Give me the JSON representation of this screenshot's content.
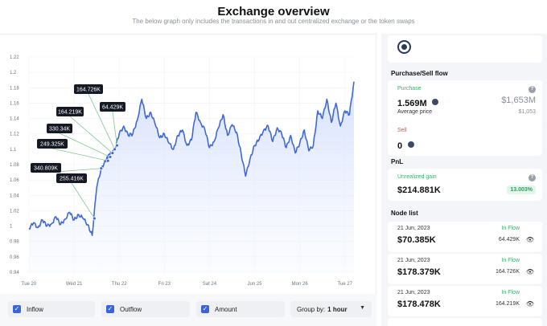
{
  "header": {
    "title": "Exchange overview",
    "subtitle": "The below graph only includes the transactions in and out centralized exchange or the token swaps"
  },
  "chart_data": {
    "type": "area",
    "yticks": [
      "1.22",
      "1.2",
      "1.18",
      "1.16",
      "1.14",
      "1.12",
      "1.1",
      "1.08",
      "1.06",
      "1.04",
      "1.02",
      "1",
      "0.98",
      "0.96",
      "0.94"
    ],
    "ylim": [
      0.94,
      1.22
    ],
    "xticks": [
      "Tue 20",
      "Wed 21",
      "Thu 22",
      "Fri 23",
      "Sat 24",
      "Jun 25",
      "Mon 26",
      "Tue 27"
    ],
    "xlim": [
      0,
      7.2
    ],
    "series": [
      {
        "x": [
          0,
          0.1,
          0.2,
          0.3,
          0.4,
          0.5,
          0.6,
          0.7,
          0.8,
          0.9,
          1.0,
          1.1,
          1.2,
          1.3,
          1.4,
          1.5,
          1.6,
          1.7,
          1.75,
          1.8,
          1.9,
          2.0,
          2.1,
          2.2,
          2.3,
          2.4,
          2.5,
          2.6,
          2.7,
          2.8,
          2.9,
          3.0,
          3.1,
          3.2,
          3.3,
          3.4,
          3.5,
          3.6,
          3.7,
          3.8,
          3.9,
          4.0,
          4.1,
          4.2,
          4.3,
          4.4,
          4.5,
          4.6,
          4.7,
          4.8,
          4.9,
          5.0,
          5.1,
          5.2,
          5.3,
          5.4,
          5.5,
          5.6,
          5.7,
          5.8,
          5.9,
          6.0,
          6.1,
          6.2,
          6.3,
          6.4,
          6.5,
          6.6,
          6.7,
          6.8,
          6.9,
          7.0,
          7.1,
          7.2
        ],
        "y": [
          0.997,
          1.004,
          0.998,
          1.008,
          1.0,
          1.003,
          1.012,
          1.002,
          1.009,
          1.018,
          1.008,
          1.015,
          1.01,
          1.002,
          0.988,
          1.05,
          1.075,
          1.085,
          1.09,
          1.095,
          1.1,
          1.12,
          1.13,
          1.118,
          1.12,
          1.138,
          1.165,
          1.14,
          1.148,
          1.132,
          1.115,
          1.12,
          1.108,
          1.1,
          1.118,
          1.125,
          1.105,
          1.112,
          1.148,
          1.135,
          1.125,
          1.102,
          1.11,
          1.128,
          1.145,
          1.118,
          1.132,
          1.122,
          1.095,
          1.065,
          1.088,
          1.105,
          1.113,
          1.125,
          1.13,
          1.11,
          1.128,
          1.12,
          1.102,
          1.118,
          1.095,
          1.108,
          1.125,
          1.098,
          1.105,
          1.15,
          1.14,
          1.165,
          1.135,
          1.16,
          1.13,
          1.15,
          1.145,
          1.188
        ]
      }
    ],
    "annotations": [
      {
        "label": "164.726K",
        "x": 1.9,
        "y": 1.1
      },
      {
        "label": "164.219K",
        "x": 1.85,
        "y": 1.095
      },
      {
        "label": "64.429K",
        "x": 1.95,
        "y": 1.105
      },
      {
        "label": "330.34K",
        "x": 1.8,
        "y": 1.09
      },
      {
        "label": "249.325K",
        "x": 1.75,
        "y": 1.085
      },
      {
        "label": "340.809K",
        "x": 1.6,
        "y": 1.075
      },
      {
        "label": "255.416K",
        "x": 1.45,
        "y": 1.01
      }
    ]
  },
  "controls": {
    "inflow": "Inflow",
    "outflow": "Outflow",
    "amount": "Amount",
    "check": "✓",
    "group_label": "Group by:",
    "group_value": "1 hour",
    "caret": "▼"
  },
  "side": {
    "purchase_sell_title": "Purchase/Sell flow",
    "purchase_label": "Purchase",
    "purchase_value": "1.569M",
    "purchase_usd": "$1,653M",
    "avg_price_label": "Average price",
    "avg_price_value": "$1,053",
    "sell_label": "Sell",
    "sell_value": "0",
    "pnl_title": "PnL",
    "unrealized_label": "Unrealized gain",
    "unrealized_value": "$214.881K",
    "unrealized_pct": "13.003%",
    "node_title": "Node list",
    "help": "?",
    "nodes": [
      {
        "date": "21 Jun, 2023",
        "flow": "In Flow",
        "value": "$70.385K",
        "amount": "64.429K"
      },
      {
        "date": "21 Jun, 2023",
        "flow": "In Flow",
        "value": "$178.379K",
        "amount": "164.726K"
      },
      {
        "date": "21 Jun, 2023",
        "flow": "In Flow",
        "value": "$178.478K",
        "amount": "164.219K"
      }
    ]
  },
  "icons": {
    "logo": "protocol-logo-icon",
    "coin": "token-coin-icon",
    "eye": "eye-slash-icon",
    "help": "help-circle-icon"
  }
}
